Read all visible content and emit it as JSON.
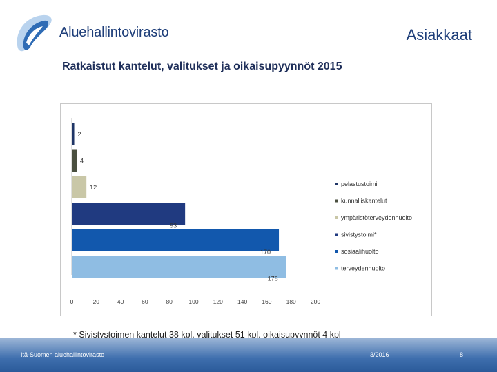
{
  "header": {
    "logo_text": "Aluehallintovirasto",
    "section_title": "Asiakkaat"
  },
  "slide": {
    "title": "Ratkaistut kantelut, valitukset ja oikaisupyynnöt 2015",
    "footnote": "* Sivistystoimen kantelut 38 kpl, valitukset 51 kpl, oikaisupyynnöt 4 kpl"
  },
  "footer": {
    "organization": "Itä-Suomen aluehallintovirasto",
    "date": "3/2016",
    "page": "8"
  },
  "colors": {
    "brand": "#1f3f7a",
    "footer_band": "#3f6fae"
  },
  "chart_data": {
    "type": "bar",
    "orientation": "horizontal",
    "title": "",
    "xlabel": "",
    "ylabel": "",
    "xlim": [
      0,
      200
    ],
    "x_ticks": [
      0,
      20,
      40,
      60,
      80,
      100,
      120,
      140,
      160,
      180,
      200
    ],
    "grid": false,
    "legend_position": "right",
    "series": [
      {
        "name": "pelastustoimi",
        "value": 2,
        "color": "#1f3566"
      },
      {
        "name": "kunnalliskantelut",
        "value": 4,
        "color": "#4a4f3f"
      },
      {
        "name": "ympäristöterveydenhuolto",
        "value": 12,
        "color": "#c9c7a7"
      },
      {
        "name": "sivistystoimi*",
        "value": 93,
        "color": "#203a80"
      },
      {
        "name": "sosiaalihuolto",
        "value": 170,
        "color": "#1258ad"
      },
      {
        "name": "terveydenhuolto",
        "value": 176,
        "color": "#8fbde3"
      }
    ]
  }
}
